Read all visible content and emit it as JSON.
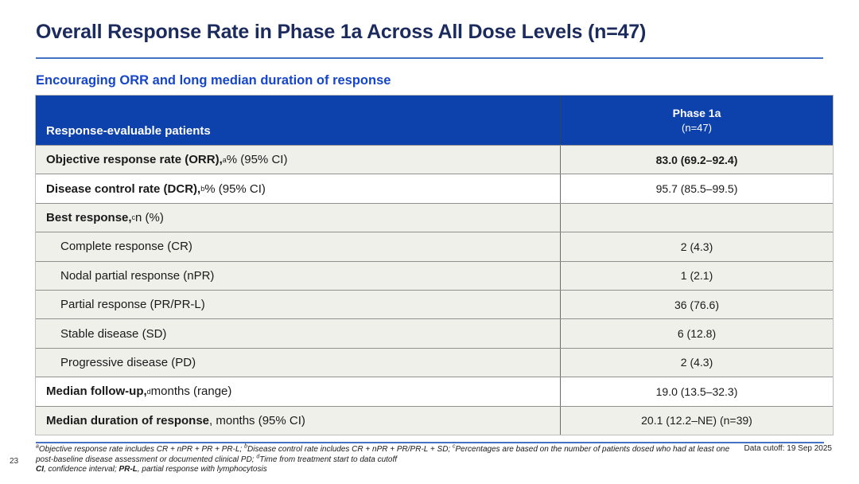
{
  "slide": {
    "title": "Overall Response Rate in Phase 1a Across All Dose Levels (n=47)",
    "subtitle": "Encouraging ORR and long median duration of response",
    "page_number": "23",
    "data_cutoff": "Data cutoff: 19 Sep 2025"
  },
  "colors": {
    "title_navy": "#1c2b5e",
    "subtitle_blue": "#1545c8",
    "accent_line_blue": "#4472c4",
    "table_header_bg": "#0d42ad",
    "row_shade_gray": "#f0f0eb"
  },
  "table": {
    "header": {
      "col1": "Response-evaluable patients",
      "col2_line1": "Phase 1a",
      "col2_line2": "(n=47)"
    },
    "rows": [
      {
        "label_bold": "Objective response rate (ORR),",
        "sup": "a",
        "label_rest": " % (95% CI)",
        "value": "83.0 (69.2–92.4)"
      },
      {
        "label_bold": "Disease control rate (DCR),",
        "sup": "b",
        "label_rest": " % (95% CI)",
        "value": "95.7 (85.5–99.5)"
      },
      {
        "label_bold": "Best response,",
        "sup": "c",
        "label_rest": " n (%)",
        "value": ""
      },
      {
        "label_bold": "",
        "sup": "",
        "label_rest": "Complete response (CR)",
        "value": "2 (4.3)"
      },
      {
        "label_bold": "",
        "sup": "",
        "label_rest": "Nodal partial response (nPR)",
        "value": "1 (2.1)"
      },
      {
        "label_bold": "",
        "sup": "",
        "label_rest": "Partial response (PR/PR-L)",
        "value": "36 (76.6)"
      },
      {
        "label_bold": "",
        "sup": "",
        "label_rest": "Stable disease (SD)",
        "value": "6 (12.8)"
      },
      {
        "label_bold": "",
        "sup": "",
        "label_rest": "Progressive disease (PD)",
        "value": "2 (4.3)"
      },
      {
        "label_bold": "Median follow-up,",
        "sup": "d",
        "label_rest": " months (range)",
        "value": "19.0 (13.5–32.3)"
      },
      {
        "label_bold": "Median duration of response",
        "sup": "",
        "label_rest": ", months (95% CI)",
        "value": "20.1 (12.2–NE) (n=39)"
      }
    ]
  },
  "footnotes": {
    "l1": {
      "s1": "a",
      "t1": "Objective response rate includes CR + nPR + PR + PR-L; ",
      "s2": "b",
      "t2": "Disease control rate includes CR + nPR + PR/PR-L + SD; ",
      "s3": "c",
      "t3": "Percentages are based on the number of patients dosed who had at least one"
    },
    "l2": {
      "t1": "post-baseline disease assessment or documented clinical PD; ",
      "s1": "d",
      "t2": "Time from treatment start to data cutoff"
    },
    "l3": {
      "b1": "CI",
      "t1": ", confidence interval; ",
      "b2": "PR-L",
      "t2": ", partial response with lymphocytosis"
    }
  }
}
